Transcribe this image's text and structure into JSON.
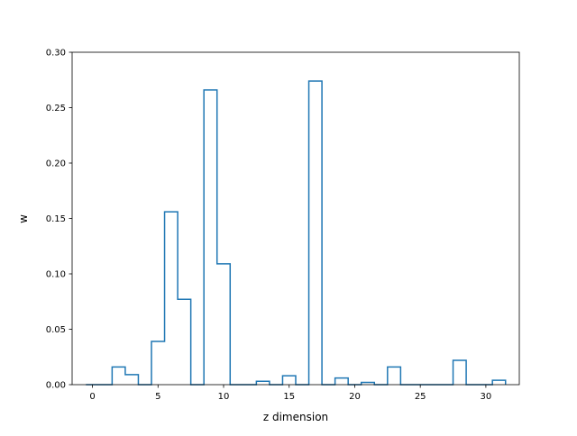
{
  "chart_data": {
    "type": "line",
    "style": "step-histogram",
    "xlabel": "z dimension",
    "ylabel": "w",
    "xlim": [
      -1.55,
      32.55
    ],
    "ylim": [
      0,
      0.3
    ],
    "x_ticks": [
      0,
      5,
      10,
      15,
      20,
      25,
      30
    ],
    "x_tick_labels": [
      "0",
      "5",
      "10",
      "15",
      "20",
      "25",
      "30"
    ],
    "y_ticks": [
      0,
      0.05,
      0.1,
      0.15,
      0.2,
      0.25,
      0.3
    ],
    "y_tick_labels": [
      "0.00",
      "0.05",
      "0.10",
      "0.15",
      "0.20",
      "0.25",
      "0.30"
    ],
    "grid": false,
    "series": [
      {
        "color": "#1f77b4",
        "x": [
          0,
          1,
          2,
          3,
          4,
          5,
          6,
          7,
          8,
          9,
          10,
          11,
          12,
          13,
          14,
          15,
          16,
          17,
          18,
          19,
          20,
          21,
          22,
          23,
          24,
          25,
          26,
          27,
          28,
          29,
          30,
          31
        ],
        "values": [
          0,
          0,
          0.016,
          0.009,
          0,
          0.039,
          0.156,
          0.077,
          0,
          0.266,
          0.109,
          0,
          0,
          0.003,
          0,
          0.008,
          0,
          0.274,
          0,
          0.006,
          0,
          0.002,
          0,
          0.016,
          0,
          0,
          0,
          0,
          0.022,
          0,
          0,
          0.004
        ]
      }
    ]
  }
}
